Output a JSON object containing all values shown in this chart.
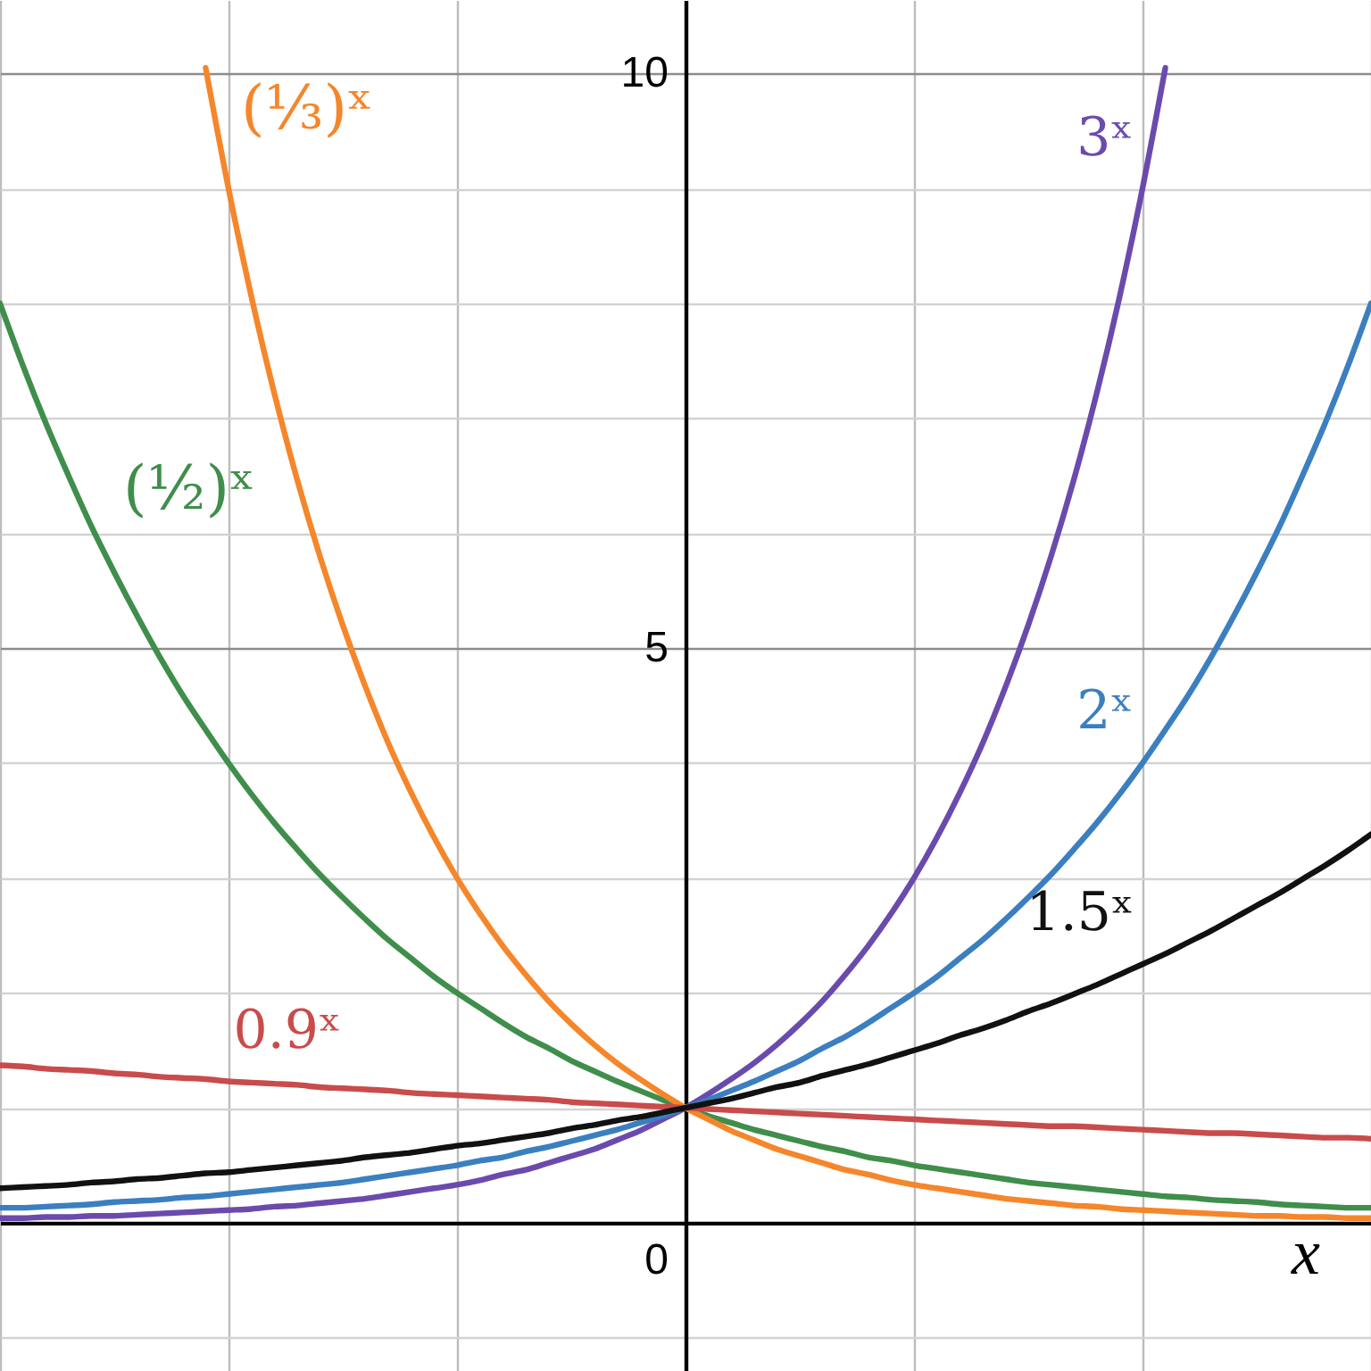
{
  "chart_data": {
    "type": "line",
    "xlabel": "x",
    "categories": [
      null,
      null,
      null,
      null,
      null,
      null,
      null,
      null,
      null,
      null,
      null,
      null,
      null,
      null,
      null,
      null,
      null,
      null,
      null,
      null,
      null,
      null,
      null,
      null,
      null,
      null,
      null,
      null,
      null,
      null,
      null,
      null,
      null,
      null,
      null,
      null,
      null,
      null,
      null,
      null,
      null,
      null,
      null,
      null,
      null,
      null,
      null,
      null,
      null,
      null,
      null,
      null,
      null,
      null,
      null,
      null,
      null,
      null,
      null,
      null,
      null
    ],
    "ylim": [
      -1.29,
      10.64
    ],
    "yticks": [
      {
        "value": -1,
        "label": null
      },
      0,
      {
        "value": 1,
        "label": null
      },
      {
        "value": 2,
        "label": null
      },
      {
        "value": 3,
        "label": null
      },
      {
        "value": 4,
        "label": null
      },
      5,
      {
        "value": 6,
        "label": null
      },
      {
        "value": 7,
        "label": null
      },
      {
        "value": 8,
        "label": null
      },
      {
        "value": 9,
        "label": null
      },
      10
    ],
    "tick_labels": "y",
    "grid": true,
    "line_style": "solid",
    "series": [
      {
        "name": "3ˣ",
        "color": "#6a4bad",
        "values": [
          0.04,
          0.04,
          0.05,
          0.05,
          0.06,
          0.06,
          0.07,
          0.08,
          0.09,
          0.1,
          0.11,
          0.12,
          0.14,
          0.15,
          0.17,
          0.19,
          0.21,
          0.24,
          0.27,
          0.3,
          0.33,
          0.37,
          0.42,
          0.46,
          0.52,
          0.58,
          0.64,
          0.72,
          0.8,
          0.9,
          1,
          1.12,
          1.25,
          1.39,
          1.55,
          1.73,
          1.93,
          2.16,
          2.41,
          2.69,
          3,
          3.35,
          3.74,
          4.17,
          4.66,
          5.2,
          5.8,
          6.47,
          7.22,
          8.06,
          9,
          10.05,
          null,
          null,
          null,
          null,
          null,
          null,
          null,
          null,
          null
        ]
      },
      {
        "name": "2ˣ",
        "color": "#3b7fc0",
        "values": [
          0.13,
          0.13,
          0.14,
          0.15,
          0.16,
          0.18,
          0.19,
          0.2,
          0.22,
          0.23,
          0.25,
          0.27,
          0.29,
          0.31,
          0.33,
          0.35,
          0.38,
          0.41,
          0.44,
          0.47,
          0.5,
          0.54,
          0.57,
          0.62,
          0.66,
          0.71,
          0.76,
          0.81,
          0.87,
          0.93,
          1,
          1.07,
          1.15,
          1.23,
          1.32,
          1.41,
          1.52,
          1.62,
          1.74,
          1.87,
          2,
          2.14,
          2.3,
          2.46,
          2.64,
          2.83,
          3.03,
          3.25,
          3.48,
          3.73,
          4,
          4.29,
          4.59,
          4.92,
          5.28,
          5.66,
          6.06,
          6.5,
          6.96,
          7.46,
          8
        ]
      },
      {
        "name": "(½)ˣ",
        "color": "#3f8e4b",
        "values": [
          8,
          7.46,
          6.96,
          6.5,
          6.06,
          5.66,
          5.28,
          4.92,
          4.59,
          4.29,
          4,
          3.73,
          3.48,
          3.25,
          3.03,
          2.83,
          2.64,
          2.46,
          2.3,
          2.14,
          2,
          1.87,
          1.74,
          1.62,
          1.52,
          1.41,
          1.32,
          1.23,
          1.15,
          1.07,
          1,
          0.93,
          0.87,
          0.81,
          0.76,
          0.71,
          0.66,
          0.62,
          0.57,
          0.54,
          0.5,
          0.47,
          0.44,
          0.41,
          0.38,
          0.35,
          0.33,
          0.31,
          0.29,
          0.27,
          0.25,
          0.23,
          0.22,
          0.2,
          0.19,
          0.18,
          0.16,
          0.15,
          0.14,
          0.13,
          0.13
        ]
      },
      {
        "name": "(⅓)ˣ",
        "color": "#f5862a",
        "values": [
          null,
          null,
          null,
          null,
          null,
          null,
          null,
          null,
          null,
          10.05,
          9,
          8.06,
          7.22,
          6.47,
          5.8,
          5.2,
          4.66,
          4.17,
          3.74,
          3.35,
          3,
          2.69,
          2.41,
          2.16,
          1.93,
          1.73,
          1.55,
          1.39,
          1.25,
          1.12,
          1,
          0.9,
          0.8,
          0.72,
          0.64,
          0.58,
          0.52,
          0.46,
          0.42,
          0.37,
          0.33,
          0.3,
          0.27,
          0.24,
          0.21,
          0.19,
          0.17,
          0.15,
          0.14,
          0.12,
          0.11,
          0.1,
          0.09,
          0.08,
          0.07,
          0.06,
          0.06,
          0.05,
          0.05,
          0.04,
          0.04
        ]
      },
      {
        "name": "0.9ˣ",
        "color": "#c94b4b",
        "values": [
          1.37,
          1.36,
          1.34,
          1.33,
          1.32,
          1.3,
          1.29,
          1.27,
          1.26,
          1.25,
          1.23,
          1.22,
          1.21,
          1.2,
          1.18,
          1.17,
          1.16,
          1.15,
          1.13,
          1.12,
          1.11,
          1.1,
          1.09,
          1.08,
          1.07,
          1.05,
          1.04,
          1.03,
          1.02,
          1.01,
          1,
          0.99,
          0.98,
          0.97,
          0.96,
          0.95,
          0.94,
          0.93,
          0.92,
          0.91,
          0.9,
          0.89,
          0.88,
          0.87,
          0.86,
          0.85,
          0.84,
          0.84,
          0.83,
          0.82,
          0.81,
          0.8,
          0.79,
          0.78,
          0.78,
          0.77,
          0.76,
          0.75,
          0.74,
          0.74,
          0.73
        ]
      },
      {
        "name": "1.5ˣ",
        "color": "#111111",
        "values": [
          0.3,
          0.31,
          0.32,
          0.33,
          0.35,
          0.36,
          0.38,
          0.39,
          0.41,
          0.43,
          0.44,
          0.46,
          0.48,
          0.5,
          0.52,
          0.54,
          0.57,
          0.59,
          0.61,
          0.64,
          0.67,
          0.69,
          0.72,
          0.75,
          0.78,
          0.82,
          0.85,
          0.89,
          0.92,
          0.96,
          1,
          1.04,
          1.08,
          1.13,
          1.18,
          1.22,
          1.28,
          1.33,
          1.38,
          1.44,
          1.5,
          1.56,
          1.63,
          1.69,
          1.76,
          1.84,
          1.91,
          1.99,
          2.07,
          2.16,
          2.25,
          2.34,
          2.44,
          2.54,
          2.65,
          2.76,
          2.87,
          2.99,
          3.11,
          3.24,
          3.38
        ]
      }
    ]
  }
}
